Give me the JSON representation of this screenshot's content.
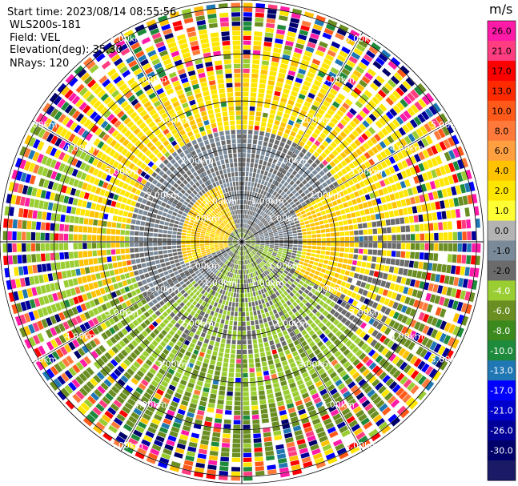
{
  "header": {
    "start_time": "Start time: 2023/08/14 08:55:56",
    "instrument": "WLS200s-181",
    "field": "Field: VEL",
    "elevation": "Elevation(deg): 35.30",
    "nrays": "NRays: 120"
  },
  "colorbar": {
    "unit": "m/s",
    "ticks": [
      "26.0",
      "21.0",
      "17.0",
      "13.0",
      "10.0",
      "8.0",
      "6.0",
      "4.0",
      "2.0",
      "1.0",
      "0.0",
      "-1.0",
      "-2.0",
      "-4.0",
      "-6.0",
      "-8.0",
      "-10.0",
      "-13.0",
      "-17.0",
      "-21.0",
      "-26.0",
      "-30.0"
    ],
    "colors": [
      "#ff1aa8",
      "#ff3d80",
      "#ff0000",
      "#ff2a00",
      "#ff5a1a",
      "#ff7a3a",
      "#ff9f40",
      "#ffc200",
      "#ffe600",
      "#ffff33",
      "#b3b3b3",
      "#7a8a99",
      "#6b6b6b",
      "#9acd32",
      "#6b8e23",
      "#3c8a1e",
      "#1e8a3c",
      "#1f77b4",
      "#0000ff",
      "#0000cc",
      "#000099",
      "#00006b",
      "#1a1a66"
    ]
  },
  "chart_data": {
    "type": "ppi",
    "field": "VEL",
    "nrays": 120,
    "unit": "m/s",
    "range_rings_km": [
      1.0,
      2.0,
      3.0,
      4.0,
      5.0
    ],
    "range_ring_labels": [
      "1.00km",
      "2.00km",
      "3.00km",
      "4.00km",
      "5.00km"
    ],
    "vmin": -30.0,
    "vmax": 26.0
  }
}
